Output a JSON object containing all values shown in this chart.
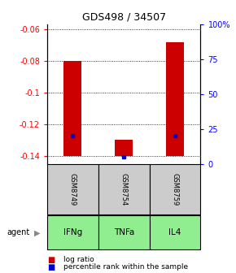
{
  "title": "GDS498 / 34507",
  "samples": [
    "GSM8749",
    "GSM8754",
    "GSM8759"
  ],
  "agents": [
    "IFNg",
    "TNFa",
    "IL4"
  ],
  "log_ratio_values": [
    -0.08,
    -0.13,
    -0.068
  ],
  "log_ratio_baseline": -0.14,
  "percentile_values": [
    20,
    5,
    20
  ],
  "ylim_left": [
    -0.145,
    -0.057
  ],
  "ylim_right": [
    0,
    100
  ],
  "left_ticks": [
    -0.06,
    -0.08,
    -0.1,
    -0.12,
    -0.14
  ],
  "right_ticks": [
    0,
    25,
    50,
    75,
    100
  ],
  "right_tick_labels": [
    "0",
    "25",
    "50",
    "75",
    "100%"
  ],
  "bar_color": "#cc0000",
  "percentile_color": "#0000cc",
  "agent_bg_color": "#90ee90",
  "sample_bg_color": "#cccccc",
  "bar_width": 0.35,
  "title_fontsize": 9,
  "tick_fontsize": 7,
  "sample_fontsize": 6,
  "agent_fontsize": 7.5,
  "legend_fontsize": 6.5
}
